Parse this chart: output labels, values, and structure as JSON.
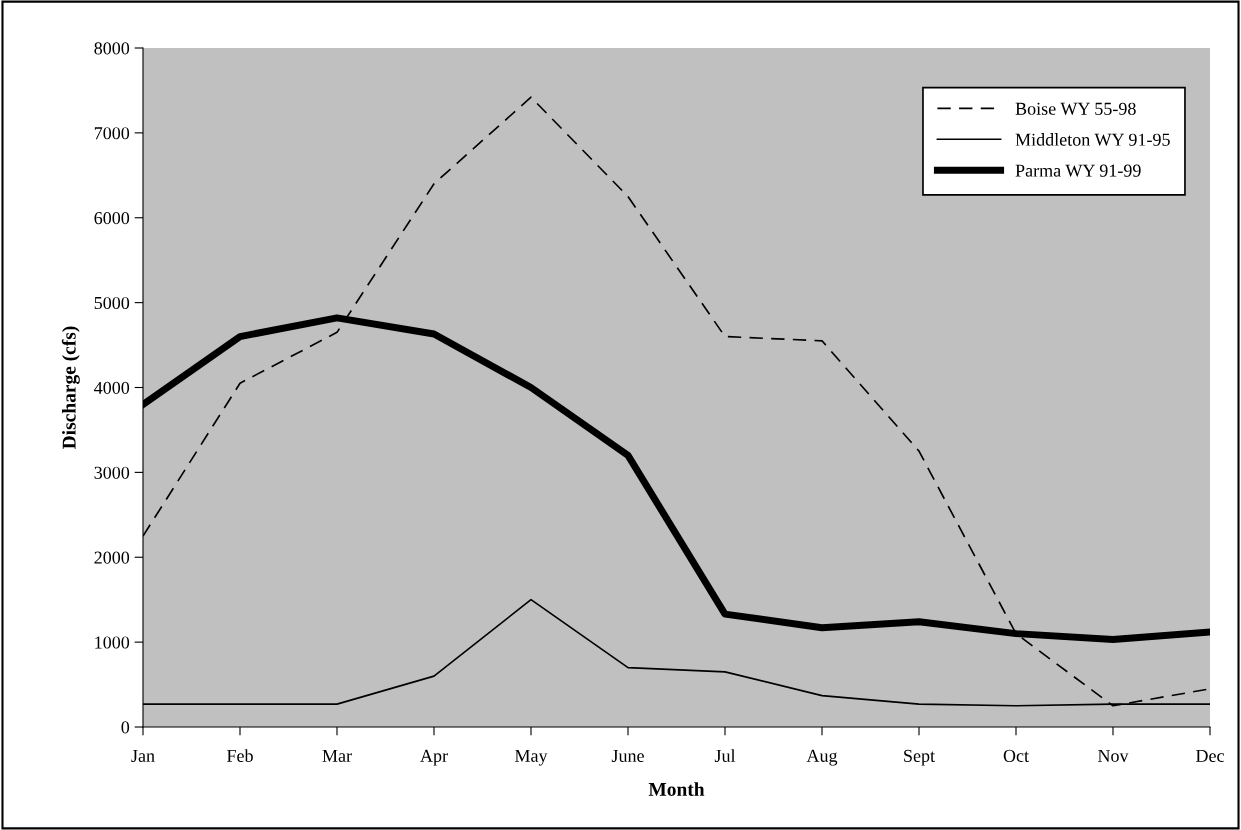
{
  "chart_data": {
    "type": "line",
    "xlabel": "Month",
    "ylabel": "Discharge (cfs)",
    "categories": [
      "Jan",
      "Feb",
      "Mar",
      "Apr",
      "May",
      "June",
      "Jul",
      "Aug",
      "Sept",
      "Oct",
      "Nov",
      "Dec"
    ],
    "series": [
      {
        "name": "Boise WY 55-98",
        "color": "#000000",
        "line_style": "dashed",
        "values": [
          2250,
          4050,
          4650,
          6400,
          7420,
          6250,
          4600,
          4550,
          3250,
          1100,
          250,
          450
        ]
      },
      {
        "name": "Middleton WY 91-95",
        "color": "#000000",
        "line_style": "solid",
        "values": [
          270,
          270,
          270,
          600,
          1500,
          700,
          650,
          370,
          270,
          250,
          270,
          270
        ]
      },
      {
        "name": "Parma WY 91-99",
        "color": "#000000",
        "line_style": "solid",
        "values": [
          3800,
          4600,
          4820,
          4630,
          4000,
          3200,
          1330,
          1170,
          1240,
          1100,
          1030,
          1120
        ]
      }
    ],
    "ylim": [
      0,
      8000
    ],
    "yticks": [
      0,
      1000,
      2000,
      3000,
      4000,
      5000,
      6000,
      7000,
      8000
    ],
    "grid": false,
    "legend": "top right"
  }
}
